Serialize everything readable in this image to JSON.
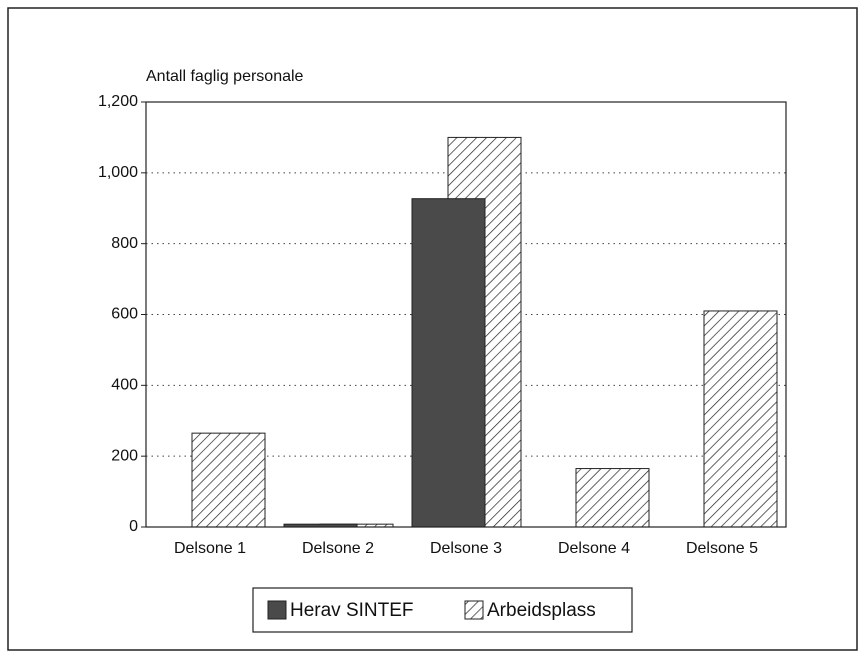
{
  "chart_data": {
    "type": "bar",
    "title": "Antall faglig personale",
    "categories": [
      "Delsone 1",
      "Delsone 2",
      "Delsone 3",
      "Delsone 4",
      "Delsone 5"
    ],
    "series": [
      {
        "name": "Herav SINTEF",
        "color": "#4a4a4a",
        "values": [
          0,
          8,
          927,
          0,
          0
        ]
      },
      {
        "name": "Arbeidsplass",
        "color": "#ffffff",
        "hatch": true,
        "values": [
          265,
          8,
          1100,
          165,
          610
        ]
      }
    ],
    "ylim": [
      0,
      1200
    ],
    "yticks": [
      0,
      200,
      400,
      600,
      800,
      {
        "value": 1000,
        "label": "1,000"
      },
      {
        "value": 1200,
        "label": "1,200"
      }
    ],
    "grid": true,
    "legend": "bottom"
  }
}
